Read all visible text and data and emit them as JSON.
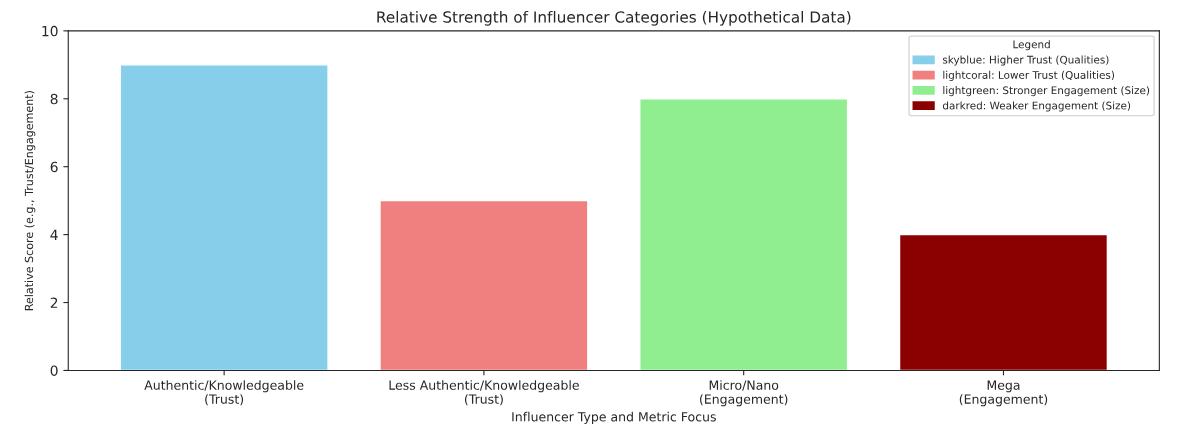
{
  "chart_data": {
    "type": "bar",
    "title": "Relative Strength of Influencer Categories (Hypothetical Data)",
    "xlabel": "Influencer Type and Metric Focus",
    "ylabel": "Relative Score (e.g., Trust/Engagement)",
    "legend_title": "Legend",
    "categories": [
      "Authentic/Knowledgeable\n(Trust)",
      "Less Authentic/Knowledgeable\n(Trust)",
      "Micro/Nano\n(Engagement)",
      "Mega\n(Engagement)"
    ],
    "series": [
      {
        "name": "skyblue: Higher Trust (Qualities)",
        "color": "#87ceeb",
        "values": [
          9,
          null,
          null,
          null
        ]
      },
      {
        "name": "lightcoral: Lower Trust (Qualities)",
        "color": "#f08080",
        "values": [
          null,
          5,
          null,
          null
        ]
      },
      {
        "name": "lightgreen: Stronger Engagement (Size)",
        "color": "#90ee90",
        "values": [
          null,
          null,
          8,
          null
        ]
      },
      {
        "name": "darkred: Weaker Engagement (Size)",
        "color": "#8b0000",
        "values": [
          null,
          null,
          null,
          4
        ]
      }
    ],
    "ylim": [
      0,
      10
    ],
    "yticks": [
      0,
      2,
      4,
      6,
      8,
      10
    ],
    "grid": false,
    "legend": "top right"
  }
}
